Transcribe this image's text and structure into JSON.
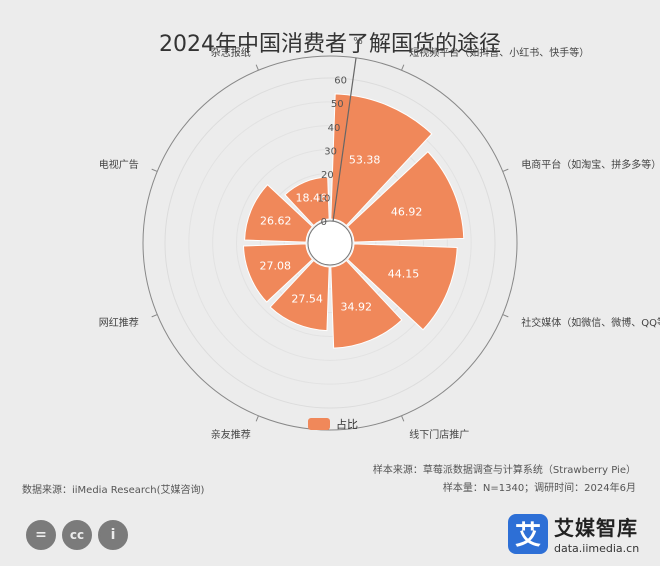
{
  "title": "2024年中国消费者了解国货的途径",
  "chart_data": {
    "type": "bar",
    "subtype": "polar-rose",
    "unit": "%",
    "rlim": [
      0,
      60
    ],
    "rticks": [
      0,
      10,
      20,
      30,
      40,
      50,
      60
    ],
    "categories": [
      "短视频平台（如抖音、小红书、快手等）",
      "电商平台（如淘宝、拼多多等）",
      "社交媒体（如微信、微博、QQ等）",
      "线下门店推广",
      "亲友推荐",
      "网红推荐",
      "电视广告",
      "杂志报纸"
    ],
    "series": [
      {
        "name": "占比",
        "color": "#f0885a",
        "values": [
          53.38,
          46.92,
          44.15,
          34.92,
          27.54,
          27.08,
          26.62,
          18.46
        ]
      }
    ],
    "legend": "bottom"
  },
  "footer": {
    "source": "数据来源：iiMedia Research(艾媒咨询)",
    "sample_source": "样本来源：草莓派数据调查与计算系统（Strawberry Pie）",
    "sample_info": "样本量：N=1340；调研时间：2024年6月"
  },
  "cc_icons": [
    "=",
    "cc",
    "i"
  ],
  "brand": {
    "logo_char": "艾",
    "name": "艾媒智库",
    "url": "data.iimedia.cn"
  }
}
